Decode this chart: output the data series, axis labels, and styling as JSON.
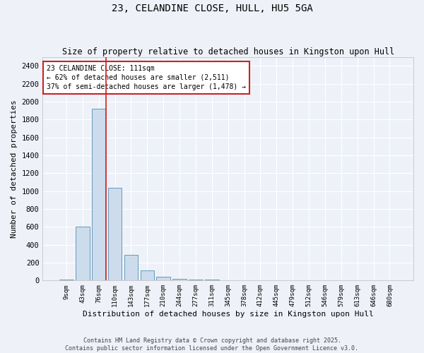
{
  "title": "23, CELANDINE CLOSE, HULL, HU5 5GA",
  "subtitle": "Size of property relative to detached houses in Kingston upon Hull",
  "xlabel": "Distribution of detached houses by size in Kingston upon Hull",
  "ylabel": "Number of detached properties",
  "categories": [
    "9sqm",
    "43sqm",
    "76sqm",
    "110sqm",
    "143sqm",
    "177sqm",
    "210sqm",
    "244sqm",
    "277sqm",
    "311sqm",
    "345sqm",
    "378sqm",
    "412sqm",
    "445sqm",
    "479sqm",
    "512sqm",
    "546sqm",
    "579sqm",
    "613sqm",
    "646sqm",
    "680sqm"
  ],
  "values": [
    10,
    600,
    1920,
    1040,
    290,
    110,
    45,
    20,
    10,
    8,
    5,
    3,
    2,
    1,
    1,
    1,
    0,
    0,
    0,
    0,
    0
  ],
  "bar_color": "#ccdcec",
  "bar_edge_color": "#6699bb",
  "background_color": "#eef2f8",
  "grid_color": "#ffffff",
  "annotation_text": "23 CELANDINE CLOSE: 111sqm\n← 62% of detached houses are smaller (2,511)\n37% of semi-detached houses are larger (1,478) →",
  "annotation_box_color": "#ffffff",
  "annotation_box_edge_color": "#cc2222",
  "red_line_x": 2.43,
  "ylim": [
    0,
    2500
  ],
  "yticks": [
    0,
    200,
    400,
    600,
    800,
    1000,
    1200,
    1400,
    1600,
    1800,
    2000,
    2200,
    2400
  ],
  "footer_line1": "Contains HM Land Registry data © Crown copyright and database right 2025.",
  "footer_line2": "Contains public sector information licensed under the Open Government Licence v3.0.",
  "title_fontsize": 10,
  "subtitle_fontsize": 8.5,
  "annotation_fontsize": 7,
  "footer_fontsize": 6,
  "ylabel_fontsize": 8,
  "xlabel_fontsize": 8,
  "ytick_fontsize": 7.5,
  "xtick_fontsize": 6.5
}
